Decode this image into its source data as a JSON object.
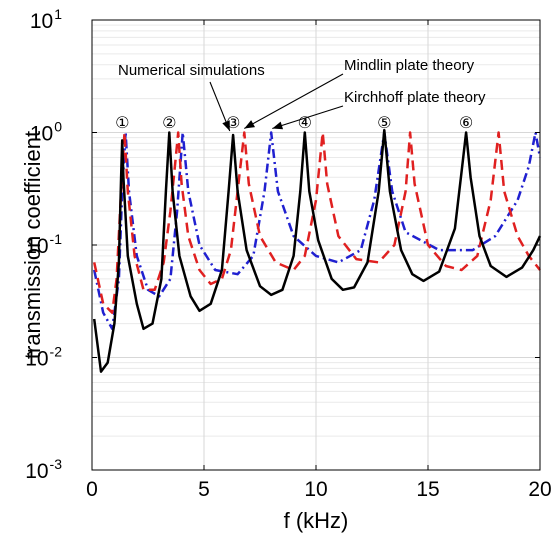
{
  "chart_data": {
    "type": "line",
    "xlabel": "f (kHz)",
    "ylabel": "transmission coefficient",
    "xlim": [
      0,
      20
    ],
    "ylim": [
      0.001,
      10
    ],
    "yscale": "log",
    "grid": true,
    "x_ticks": [
      0,
      5,
      10,
      15,
      20
    ],
    "x_tick_labels": [
      "0",
      "5",
      "10",
      "15",
      "20"
    ],
    "y_ticks": [
      {
        "base": "10",
        "exp": "-3"
      },
      {
        "base": "10",
        "exp": "-2"
      },
      {
        "base": "10",
        "exp": "-1"
      },
      {
        "base": "10",
        "exp": "0"
      },
      {
        "base": "10",
        "exp": "1"
      }
    ],
    "series": [
      {
        "name": "Numerical simulations",
        "color": "#000000",
        "dash": "solid",
        "points": [
          [
            0.1,
            0.022
          ],
          [
            0.4,
            0.0075
          ],
          [
            0.7,
            0.009
          ],
          [
            1.0,
            0.02
          ],
          [
            1.2,
            0.07
          ],
          [
            1.3,
            0.4
          ],
          [
            1.35,
            0.85
          ],
          [
            1.4,
            0.4
          ],
          [
            1.6,
            0.08
          ],
          [
            2.0,
            0.03
          ],
          [
            2.3,
            0.018
          ],
          [
            2.7,
            0.02
          ],
          [
            3.1,
            0.05
          ],
          [
            3.3,
            0.3
          ],
          [
            3.45,
            1.0
          ],
          [
            3.6,
            0.3
          ],
          [
            3.9,
            0.08
          ],
          [
            4.4,
            0.035
          ],
          [
            4.8,
            0.026
          ],
          [
            5.3,
            0.03
          ],
          [
            5.8,
            0.06
          ],
          [
            6.1,
            0.3
          ],
          [
            6.3,
            0.95
          ],
          [
            6.5,
            0.3
          ],
          [
            6.9,
            0.09
          ],
          [
            7.5,
            0.043
          ],
          [
            8.0,
            0.036
          ],
          [
            8.5,
            0.04
          ],
          [
            9.0,
            0.08
          ],
          [
            9.3,
            0.3
          ],
          [
            9.5,
            1.0
          ],
          [
            9.7,
            0.3
          ],
          [
            10.1,
            0.11
          ],
          [
            10.7,
            0.05
          ],
          [
            11.2,
            0.04
          ],
          [
            11.7,
            0.042
          ],
          [
            12.3,
            0.07
          ],
          [
            12.8,
            0.3
          ],
          [
            13.05,
            1.05
          ],
          [
            13.3,
            0.3
          ],
          [
            13.8,
            0.09
          ],
          [
            14.3,
            0.055
          ],
          [
            14.8,
            0.048
          ],
          [
            15.5,
            0.058
          ],
          [
            16.2,
            0.14
          ],
          [
            16.5,
            0.45
          ],
          [
            16.7,
            1.0
          ],
          [
            16.9,
            0.4
          ],
          [
            17.3,
            0.12
          ],
          [
            17.8,
            0.065
          ],
          [
            18.5,
            0.052
          ],
          [
            19.2,
            0.063
          ],
          [
            19.7,
            0.09
          ],
          [
            20.0,
            0.12
          ]
        ]
      },
      {
        "name": "Mindlin plate theory",
        "color": "#e02020",
        "dash": "dashed",
        "points": [
          [
            0.1,
            0.07
          ],
          [
            0.5,
            0.03
          ],
          [
            0.9,
            0.025
          ],
          [
            1.1,
            0.05
          ],
          [
            1.3,
            0.3
          ],
          [
            1.45,
            1.0
          ],
          [
            1.6,
            0.3
          ],
          [
            1.9,
            0.08
          ],
          [
            2.3,
            0.04
          ],
          [
            2.8,
            0.04
          ],
          [
            3.2,
            0.07
          ],
          [
            3.5,
            0.2
          ],
          [
            3.7,
            0.5
          ],
          [
            3.85,
            1.0
          ],
          [
            4.0,
            0.35
          ],
          [
            4.3,
            0.12
          ],
          [
            4.8,
            0.06
          ],
          [
            5.3,
            0.045
          ],
          [
            5.8,
            0.05
          ],
          [
            6.2,
            0.09
          ],
          [
            6.5,
            0.3
          ],
          [
            6.8,
            1.0
          ],
          [
            7.0,
            0.35
          ],
          [
            7.5,
            0.12
          ],
          [
            8.2,
            0.07
          ],
          [
            9.0,
            0.06
          ],
          [
            9.5,
            0.08
          ],
          [
            10.0,
            0.25
          ],
          [
            10.3,
            1.0
          ],
          [
            10.5,
            0.35
          ],
          [
            11.0,
            0.12
          ],
          [
            11.8,
            0.075
          ],
          [
            12.8,
            0.07
          ],
          [
            13.5,
            0.1
          ],
          [
            14.0,
            0.3
          ],
          [
            14.2,
            1.0
          ],
          [
            14.4,
            0.35
          ],
          [
            15.0,
            0.1
          ],
          [
            15.8,
            0.065
          ],
          [
            16.5,
            0.06
          ],
          [
            17.2,
            0.08
          ],
          [
            17.8,
            0.25
          ],
          [
            18.15,
            1.0
          ],
          [
            18.4,
            0.3
          ],
          [
            19.0,
            0.12
          ],
          [
            19.5,
            0.08
          ],
          [
            20.0,
            0.06
          ]
        ]
      },
      {
        "name": "Kirchhoff plate theory",
        "color": "#2020d0",
        "dash": "dashdot",
        "points": [
          [
            0.1,
            0.06
          ],
          [
            0.5,
            0.025
          ],
          [
            0.9,
            0.018
          ],
          [
            1.2,
            0.05
          ],
          [
            1.35,
            0.3
          ],
          [
            1.5,
            1.0
          ],
          [
            1.65,
            0.3
          ],
          [
            2.0,
            0.08
          ],
          [
            2.5,
            0.04
          ],
          [
            3.0,
            0.035
          ],
          [
            3.5,
            0.05
          ],
          [
            3.8,
            0.2
          ],
          [
            4.05,
            1.0
          ],
          [
            4.3,
            0.3
          ],
          [
            4.8,
            0.1
          ],
          [
            5.5,
            0.06
          ],
          [
            6.5,
            0.055
          ],
          [
            7.2,
            0.08
          ],
          [
            7.7,
            0.3
          ],
          [
            8.0,
            1.0
          ],
          [
            8.3,
            0.3
          ],
          [
            9.0,
            0.12
          ],
          [
            10.0,
            0.08
          ],
          [
            11.0,
            0.07
          ],
          [
            12.0,
            0.09
          ],
          [
            12.6,
            0.25
          ],
          [
            13.05,
            1.0
          ],
          [
            13.4,
            0.3
          ],
          [
            14.0,
            0.13
          ],
          [
            15.5,
            0.09
          ],
          [
            17.0,
            0.09
          ],
          [
            18.0,
            0.12
          ],
          [
            19.0,
            0.25
          ],
          [
            19.5,
            0.5
          ],
          [
            19.8,
            1.0
          ],
          [
            20.0,
            0.6
          ]
        ]
      }
    ],
    "mode_markers": [
      {
        "label": "①",
        "x": 1.35
      },
      {
        "label": "②",
        "x": 3.45
      },
      {
        "label": "③",
        "x": 6.3
      },
      {
        "label": "④",
        "x": 9.5
      },
      {
        "label": "⑤",
        "x": 13.05
      },
      {
        "label": "⑥",
        "x": 16.7
      }
    ],
    "annotations": [
      {
        "text": "Numerical simulations",
        "target_x": 6.15,
        "target_y": 0.95
      },
      {
        "text": "Mindlin plate theory",
        "target_x": 6.8,
        "target_y": 1.0
      },
      {
        "text": "Kirchhoff plate theory",
        "target_x": 8.05,
        "target_y": 1.0
      }
    ]
  }
}
